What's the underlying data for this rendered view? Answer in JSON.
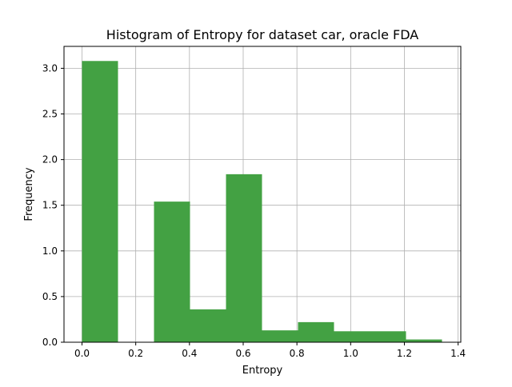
{
  "chart_data": {
    "type": "bar",
    "title": "Histogram of Entropy for dataset car, oracle FDA",
    "xlabel": "Entropy",
    "ylabel": "Frequency",
    "xlim": [
      -0.067,
      1.41
    ],
    "ylim": [
      0,
      3.24
    ],
    "grid": true,
    "bar_color": "#43a143",
    "xticks": [
      0.0,
      0.2,
      0.4,
      0.6,
      0.8,
      1.0,
      1.2,
      1.4
    ],
    "xtick_labels": [
      "0.0",
      "0.2",
      "0.4",
      "0.6",
      "0.8",
      "1.0",
      "1.2",
      "1.4"
    ],
    "yticks": [
      0.0,
      0.5,
      1.0,
      1.5,
      2.0,
      2.5,
      3.0
    ],
    "ytick_labels": [
      "0.0",
      "0.5",
      "1.0",
      "1.5",
      "2.0",
      "2.5",
      "3.0"
    ],
    "bins": [
      {
        "x0": 0.0,
        "x1": 0.134,
        "value": 3.08
      },
      {
        "x0": 0.134,
        "x1": 0.268,
        "value": 0.0
      },
      {
        "x0": 0.268,
        "x1": 0.402,
        "value": 1.54
      },
      {
        "x0": 0.402,
        "x1": 0.536,
        "value": 0.36
      },
      {
        "x0": 0.536,
        "x1": 0.67,
        "value": 1.84
      },
      {
        "x0": 0.67,
        "x1": 0.804,
        "value": 0.13
      },
      {
        "x0": 0.804,
        "x1": 0.938,
        "value": 0.22
      },
      {
        "x0": 0.938,
        "x1": 1.072,
        "value": 0.12
      },
      {
        "x0": 1.072,
        "x1": 1.206,
        "value": 0.12
      },
      {
        "x0": 1.206,
        "x1": 1.34,
        "value": 0.03
      }
    ]
  }
}
